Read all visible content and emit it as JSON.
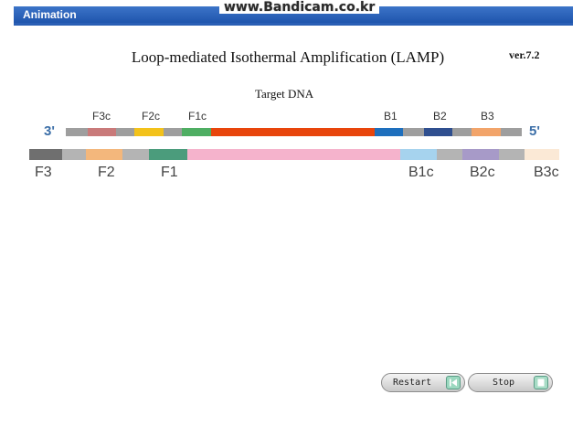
{
  "header": {
    "title": "Animation",
    "watermark": "www.Bandicam.co.kr"
  },
  "title": "Loop-mediated Isothermal Amplification (LAMP)",
  "version": "ver.7.2",
  "target_label": "Target DNA",
  "strand_ends": {
    "left": "3'",
    "right": "5'"
  },
  "top_labels": [
    "F3c",
    "F2c",
    "F1c",
    "B1",
    "B2",
    "B3"
  ],
  "bottom_labels": [
    "F3",
    "F2",
    "F1",
    "B1c",
    "B2c",
    "B3c"
  ],
  "colors": {
    "backbone": "#9e9e9e",
    "F3c": "#c97a7a",
    "F2c": "#f3c21a",
    "F1c": "#4fae63",
    "target": "#e8450c",
    "B1": "#1e6fbd",
    "B2": "#2f4f8f",
    "B3": "#f2a46a",
    "F3": "#6f6f6f",
    "bottom_backbone": "#b4b4b4",
    "F2": "#f3b77c",
    "F1": "#4b9c7c",
    "complement": "#f5b3cc",
    "B1c": "#a6d3ee",
    "B2c": "#a79ac8",
    "B3c": "#fbe9d6"
  },
  "buttons": {
    "restart": "Restart",
    "stop": "Stop"
  }
}
